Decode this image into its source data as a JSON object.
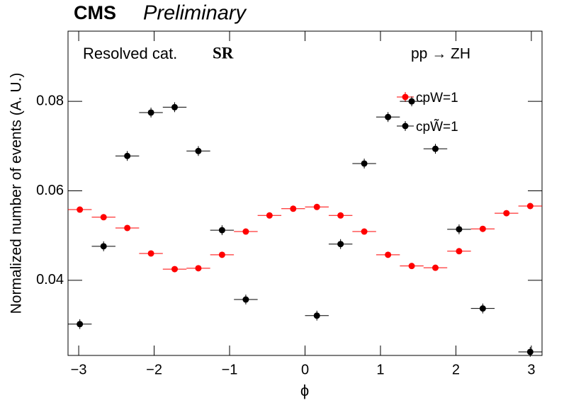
{
  "chart_data": {
    "type": "errorbar",
    "title": "CMS",
    "subtitle": "Preliminary",
    "annotations": [
      "Resolved cat.",
      "SR",
      "pp → ZH"
    ],
    "x_label": "ϕ",
    "y_label": "Normalized number of events (A. U.)",
    "x": [
      -2.985,
      -2.67,
      -2.356,
      -2.042,
      -1.728,
      -1.414,
      -1.1,
      -0.785,
      -0.471,
      -0.157,
      0.157,
      0.471,
      0.785,
      1.1,
      1.414,
      1.728,
      2.042,
      2.356,
      2.67,
      2.985
    ],
    "xerr": 0.157,
    "series": [
      {
        "name": "cpW=1",
        "color": "#ff0000",
        "values": [
          0.0558,
          0.0541,
          0.0517,
          0.046,
          0.0425,
          0.0427,
          0.0457,
          0.0509,
          0.0545,
          0.056,
          0.0564,
          0.0545,
          0.0509,
          0.0457,
          0.0432,
          0.0428,
          0.0465,
          0.0515,
          0.055,
          0.0566
        ]
      },
      {
        "name": "cpW̃=1",
        "color": "#000000",
        "values": [
          0.0302,
          0.0476,
          0.0678,
          0.0775,
          0.0787,
          0.0689,
          0.0512,
          0.0357,
          null,
          null,
          0.0321,
          0.0481,
          0.0661,
          0.0765,
          0.08,
          0.0694,
          0.0514,
          0.0337,
          null,
          0.024
        ],
        "errors": [
          0.0011,
          0.0011,
          0.0011,
          0.0011,
          0.0011,
          0.0011,
          0.0011,
          0.0011,
          null,
          null,
          0.0011,
          0.0011,
          0.0011,
          0.0011,
          0.0011,
          0.0011,
          0.0011,
          0.0011,
          null,
          0.0011
        ]
      }
    ],
    "xlim": [
      -3.1416,
      3.1416
    ],
    "ylim": [
      0.0232,
      0.0957
    ],
    "xticks": [
      {
        "value": -3,
        "label": "−3"
      },
      {
        "value": -2,
        "label": "−2"
      },
      {
        "value": -1,
        "label": "−1"
      },
      0,
      1,
      2,
      3
    ],
    "yticks": [
      0.04,
      0.06,
      0.08
    ]
  }
}
